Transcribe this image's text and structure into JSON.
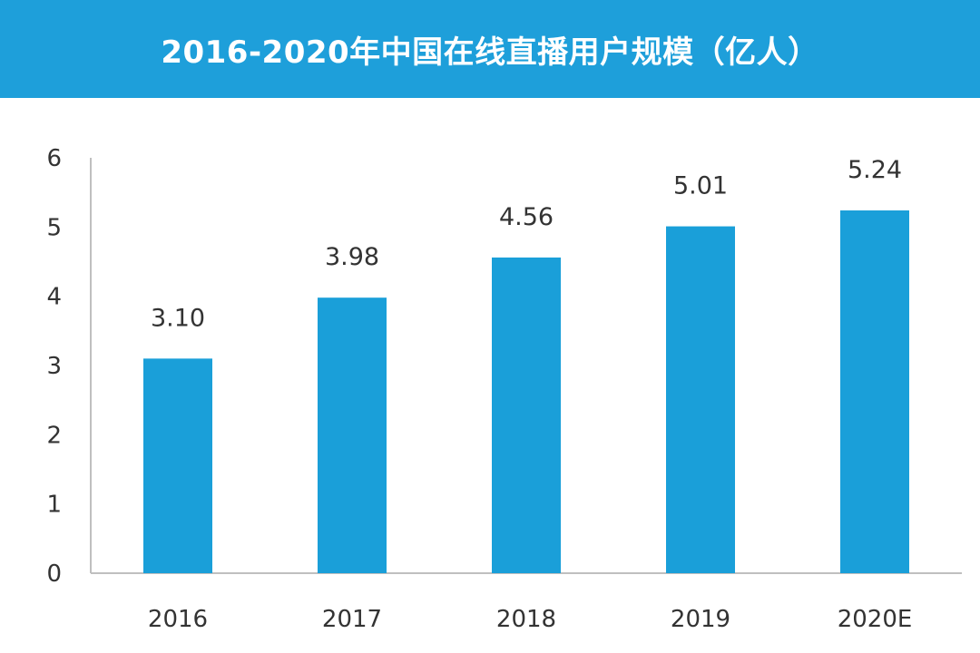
{
  "colors": {
    "banner": "#1E9FDA",
    "bar": "#1A9FD9",
    "axis": "#BFBFBF",
    "text": "#333333"
  },
  "chart_data": {
    "type": "bar",
    "title": "2016-2020年中国在线直播用户规模（亿人）",
    "xlabel": "",
    "ylabel": "",
    "categories": [
      "2016",
      "2017",
      "2018",
      "2019",
      "2020E"
    ],
    "series": [
      {
        "values": [
          3.1,
          3.98,
          4.56,
          5.01,
          5.24
        ]
      }
    ],
    "value_labels": [
      "3.10",
      "3.98",
      "4.56",
      "5.01",
      "5.24"
    ],
    "ylim": [
      0,
      6
    ],
    "yticks": [
      "0",
      "1",
      "2",
      "3",
      "4",
      "5",
      "6"
    ],
    "grid": false,
    "legend": "none"
  }
}
